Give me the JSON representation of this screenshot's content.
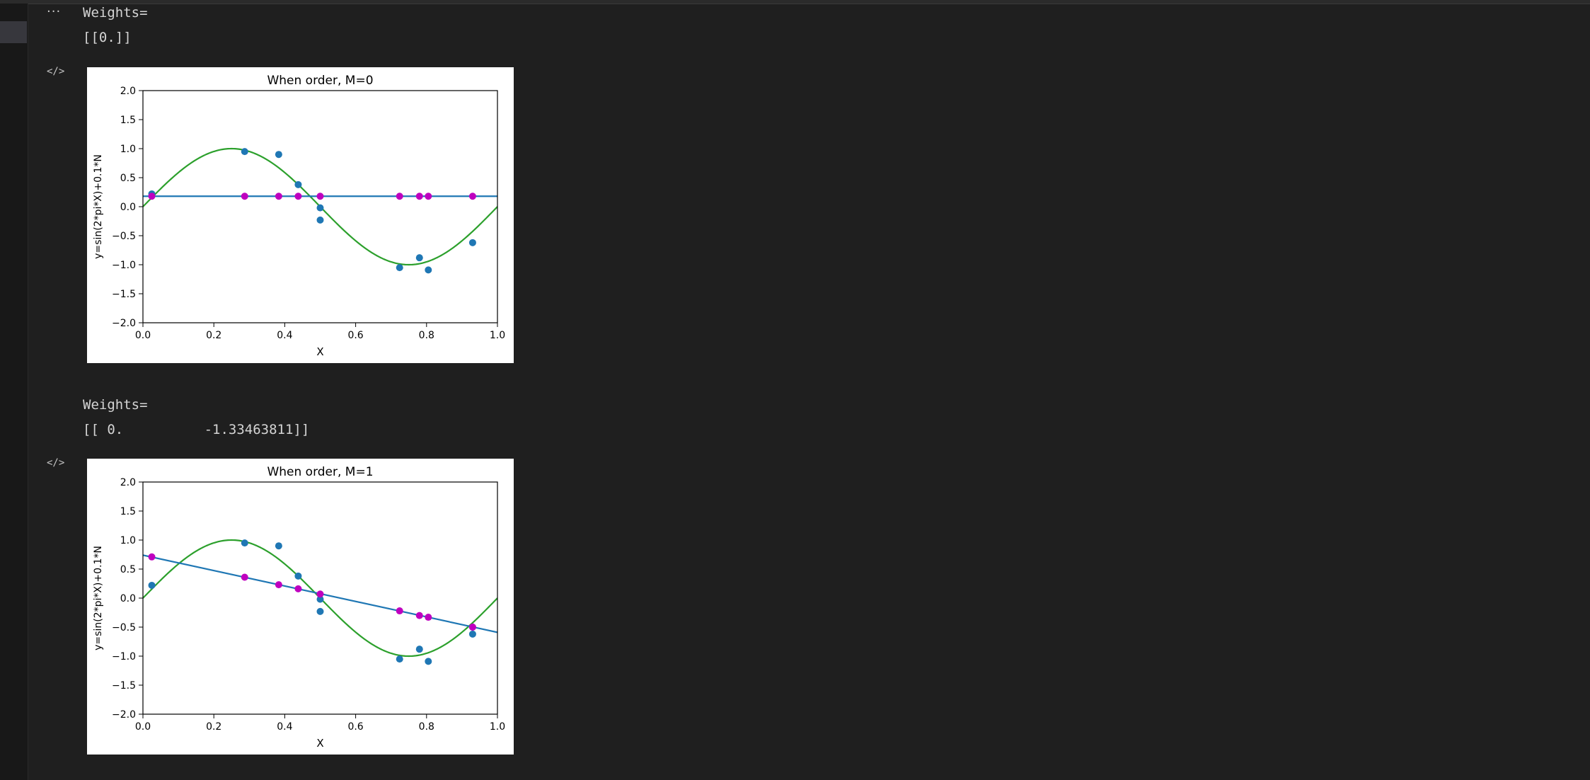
{
  "notebook": {
    "more_label": "···",
    "code_icon": "</>",
    "outputs": [
      {
        "text_lines": [
          "Weights=",
          "[[0.]]"
        ]
      },
      {
        "text_lines": [
          "Weights=",
          "[[ 0.          -1.33463811]]"
        ]
      }
    ]
  },
  "chart_data": [
    {
      "type": "scatter",
      "title": "When order, M=0",
      "xlabel": "X",
      "ylabel": "y=sin(2*pi*X)+0.1*N",
      "xlim": [
        0.0,
        1.0
      ],
      "ylim": [
        -2.0,
        2.0
      ],
      "xticks": [
        "0.0",
        "0.2",
        "0.4",
        "0.6",
        "0.8",
        "1.0"
      ],
      "yticks": [
        "2.0",
        "1.5",
        "1.0",
        "0.5",
        "0.0",
        "−0.5",
        "−1.0",
        "−1.5",
        "−2.0"
      ],
      "grid": false,
      "colors": {
        "true_curve": "#2ca02c",
        "fit": "#1f77b4",
        "data": "#1f77b4",
        "predicted": "#bf00bf"
      },
      "true_curve": {
        "function": "sin(2*pi*x)"
      },
      "fit_line": [
        [
          0.0,
          0.18
        ],
        [
          1.0,
          0.18
        ]
      ],
      "data_points": {
        "x": [
          0.025,
          0.287,
          0.383,
          0.438,
          0.5,
          0.5,
          0.724,
          0.78,
          0.805,
          0.93
        ],
        "y": [
          0.22,
          0.95,
          0.9,
          0.38,
          -0.02,
          -0.23,
          -1.05,
          -0.88,
          -1.09,
          -0.62
        ]
      },
      "predicted_points": {
        "x": [
          0.025,
          0.287,
          0.383,
          0.438,
          0.5,
          0.724,
          0.78,
          0.805,
          0.93
        ],
        "y": [
          0.18,
          0.18,
          0.18,
          0.18,
          0.18,
          0.18,
          0.18,
          0.18,
          0.18
        ]
      }
    },
    {
      "type": "scatter",
      "title": "When order, M=1",
      "xlabel": "X",
      "ylabel": "y=sin(2*pi*X)+0.1*N",
      "xlim": [
        0.0,
        1.0
      ],
      "ylim": [
        -2.0,
        2.0
      ],
      "xticks": [
        "0.0",
        "0.2",
        "0.4",
        "0.6",
        "0.8",
        "1.0"
      ],
      "yticks": [
        "2.0",
        "1.5",
        "1.0",
        "0.5",
        "0.0",
        "−0.5",
        "−1.0",
        "−1.5",
        "−2.0"
      ],
      "grid": false,
      "colors": {
        "true_curve": "#2ca02c",
        "fit": "#1f77b4",
        "data": "#1f77b4",
        "predicted": "#bf00bf"
      },
      "true_curve": {
        "function": "sin(2*pi*x)"
      },
      "fit_line": [
        [
          0.0,
          0.74
        ],
        [
          1.0,
          -0.59
        ]
      ],
      "data_points": {
        "x": [
          0.025,
          0.287,
          0.383,
          0.438,
          0.5,
          0.5,
          0.724,
          0.78,
          0.805,
          0.93
        ],
        "y": [
          0.22,
          0.95,
          0.9,
          0.38,
          -0.02,
          -0.23,
          -1.05,
          -0.88,
          -1.09,
          -0.62
        ]
      },
      "predicted_points": {
        "x": [
          0.025,
          0.287,
          0.383,
          0.438,
          0.5,
          0.724,
          0.78,
          0.805,
          0.93,
          0.93
        ],
        "y": [
          0.71,
          0.36,
          0.23,
          0.16,
          0.07,
          -0.22,
          -0.3,
          -0.33,
          -0.5,
          -0.5
        ]
      }
    }
  ]
}
